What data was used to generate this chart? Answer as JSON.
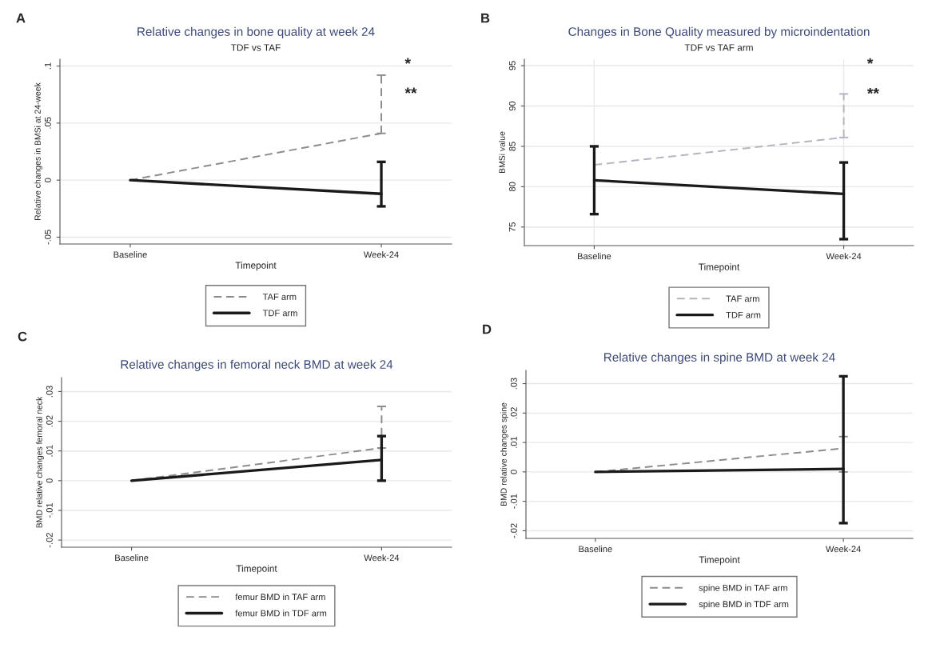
{
  "chart_data": [
    {
      "type": "line",
      "title": "Relative changes in bone quality at week 24",
      "subtitle": "TDF vs TAF",
      "xlabel": "Timepoint",
      "ylabel": "Relative changes in BMSi at 24-week",
      "categories": [
        "Baseline",
        "Week-24"
      ],
      "series": [
        {
          "name": "TAF arm",
          "color": "#8c8c8c",
          "line_style": "dashed",
          "values": [
            0,
            0.041
          ],
          "errors": [
            null,
            [
              0.041,
              0.092
            ]
          ]
        },
        {
          "name": "TDF arm",
          "color": "#1a1a1a",
          "line_style": "solid",
          "values": [
            0,
            -0.012
          ],
          "errors": [
            null,
            [
              -0.023,
              0.016
            ]
          ]
        }
      ],
      "ylim": [
        -0.056,
        0.106
      ],
      "yticks": [
        {
          "value": -0.05,
          "label": "-.05"
        },
        0,
        {
          "value": 0.05,
          "label": ".05"
        },
        {
          "value": 0.1,
          "label": ".1"
        }
      ],
      "grid": "y",
      "legend": "bottom",
      "annotations": [
        "A",
        "*",
        "**"
      ]
    },
    {
      "type": "line",
      "title": "Changes in Bone Quality measured by microindentation",
      "subtitle": "TDF vs TAF arm",
      "xlabel": "Timepoint",
      "ylabel": "BMSi value",
      "categories": [
        "Baseline",
        "Week-24"
      ],
      "series": [
        {
          "name": "TAF arm",
          "color": "#b4b4c0",
          "line_style": "dashed",
          "values": [
            82.7,
            86.1
          ],
          "errors": [
            null,
            [
              86.1,
              91.5
            ]
          ]
        },
        {
          "name": "TDF arm",
          "color": "#1a1a1a",
          "line_style": "solid",
          "values": [
            80.8,
            79.1
          ],
          "errors": [
            [
              76.6,
              85.0
            ],
            [
              73.5,
              83.0
            ]
          ]
        }
      ],
      "ylim": [
        72.7,
        95.8
      ],
      "yticks": [
        75,
        80,
        85,
        90,
        95
      ],
      "grid": true,
      "legend": "bottom",
      "annotations": [
        "B",
        "*",
        "**"
      ]
    },
    {
      "type": "line",
      "title": "Relative changes in femoral neck BMD at week 24",
      "xlabel": "Timepoint",
      "ylabel": "BMD relative changes femoral neck",
      "categories": [
        "Baseline",
        "Week-24"
      ],
      "series": [
        {
          "name": "femur BMD in TAF arm",
          "color": "#8c8c8c",
          "line_style": "dashed",
          "values": [
            0,
            0.011
          ],
          "errors": [
            null,
            [
              0.011,
              0.025
            ]
          ]
        },
        {
          "name": "femur BMD in TDF arm",
          "color": "#1a1a1a",
          "line_style": "solid",
          "values": [
            0,
            0.007
          ],
          "errors": [
            null,
            [
              0.0,
              0.015
            ]
          ]
        }
      ],
      "ylim": [
        -0.0224,
        0.0347
      ],
      "yticks": [
        {
          "value": -0.02,
          "label": "-.02"
        },
        {
          "value": -0.01,
          "label": "-.01"
        },
        0,
        {
          "value": 0.01,
          "label": ".01"
        },
        {
          "value": 0.02,
          "label": ".02"
        },
        {
          "value": 0.03,
          "label": ".03"
        }
      ],
      "grid": "y",
      "legend": "bottom",
      "annotations": [
        "C"
      ]
    },
    {
      "type": "line",
      "title": "Relative changes in spine BMD at week 24",
      "xlabel": "Timepoint",
      "ylabel": "BMD relative changes spine",
      "categories": [
        "Baseline",
        "Week-24"
      ],
      "series": [
        {
          "name": "spine BMD in TAF arm",
          "color": "#8c8c8c",
          "line_style": "dashed",
          "values": [
            0,
            0.008
          ],
          "errors": [
            null,
            [
              0.0,
              0.012
            ]
          ]
        },
        {
          "name": "spine BMD in TDF arm",
          "color": "#1a1a1a",
          "line_style": "solid",
          "values": [
            0,
            0.001
          ],
          "errors": [
            null,
            [
              -0.0174,
              0.0325
            ]
          ]
        }
      ],
      "ylim": [
        -0.0226,
        0.0345
      ],
      "yticks": [
        {
          "value": -0.02,
          "label": "-.02"
        },
        {
          "value": -0.01,
          "label": "-.01"
        },
        0,
        {
          "value": 0.01,
          "label": ".01"
        },
        {
          "value": 0.02,
          "label": ".02"
        },
        {
          "value": 0.03,
          "label": ".03"
        }
      ],
      "grid": "y",
      "legend": "bottom",
      "annotations": [
        "D"
      ]
    }
  ]
}
